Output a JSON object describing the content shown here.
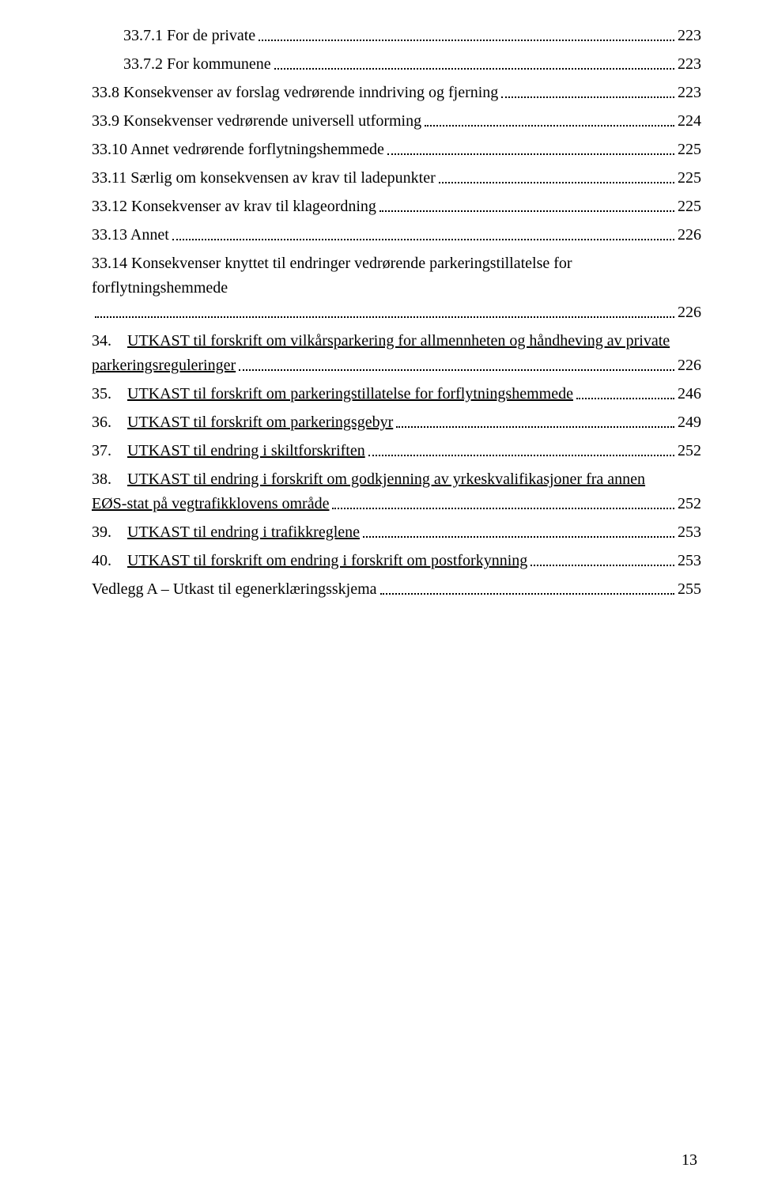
{
  "entries": [
    {
      "indent": 1,
      "label": "33.7.1 For de private",
      "page": "223",
      "underline": false,
      "wrap": false
    },
    {
      "indent": 1,
      "label": "33.7.2 For kommunene",
      "page": "223",
      "underline": false,
      "wrap": false
    },
    {
      "indent": 0,
      "label": "33.8 Konsekvenser av forslag vedrørende inndriving og fjerning",
      "page": "223",
      "underline": false,
      "wrap": false
    },
    {
      "indent": 0,
      "label": "33.9 Konsekvenser vedrørende universell utforming",
      "page": "224",
      "underline": false,
      "wrap": false
    },
    {
      "indent": 0,
      "label": "33.10 Annet vedrørende forflytningshemmede",
      "page": "225",
      "underline": false,
      "wrap": false
    },
    {
      "indent": 0,
      "label": "33.11 Særlig om konsekvensen av krav til ladepunkter",
      "page": "225",
      "underline": false,
      "wrap": false
    },
    {
      "indent": 0,
      "label": "33.12 Konsekvenser av krav til klageordning",
      "page": "225",
      "underline": false,
      "wrap": false
    },
    {
      "indent": 0,
      "label": "33.13 Annet",
      "page": "226",
      "underline": false,
      "wrap": false
    },
    {
      "indent": 0,
      "label_top": "33.14 Konsekvenser knyttet til endringer vedrørende parkeringstillatelse for forflytningshemmede",
      "label_bottom": "",
      "page": "226",
      "underline": false,
      "wrap": true
    },
    {
      "indent": 0,
      "label_top": "34. UTKAST til forskrift om vilkårsparkering for allmennheten og håndheving av private",
      "label_bottom": "parkeringsreguleringer",
      "page": "226",
      "underline": true,
      "wrap": true
    },
    {
      "indent": 0,
      "label": "35. UTKAST til forskrift om parkeringstillatelse for forflytningshemmede",
      "page": "246",
      "underline": true,
      "wrap": false
    },
    {
      "indent": 0,
      "label": "36. UTKAST til forskrift om parkeringsgebyr",
      "page": "249",
      "underline": true,
      "wrap": false
    },
    {
      "indent": 0,
      "label": "37. UTKAST til endring i skiltforskriften",
      "page": "252",
      "underline": true,
      "wrap": false
    },
    {
      "indent": 0,
      "label_top": "38. UTKAST til endring i forskrift om godkjenning av yrkeskvalifikasjoner fra annen",
      "label_bottom": "EØS-stat på vegtrafikklovens område",
      "page": "252",
      "underline": true,
      "wrap": true
    },
    {
      "indent": 0,
      "label": "39. UTKAST til endring i trafikkreglene",
      "page": "253",
      "underline": true,
      "wrap": false
    },
    {
      "indent": 0,
      "label": "40. UTKAST til forskrift om endring i forskrift om postforkynning",
      "page": "253",
      "underline": true,
      "wrap": false
    },
    {
      "indent": 0,
      "label": "Vedlegg A – Utkast til egenerklæringsskjema",
      "page": "255",
      "underline": false,
      "wrap": false
    }
  ],
  "pageNumber": "13"
}
